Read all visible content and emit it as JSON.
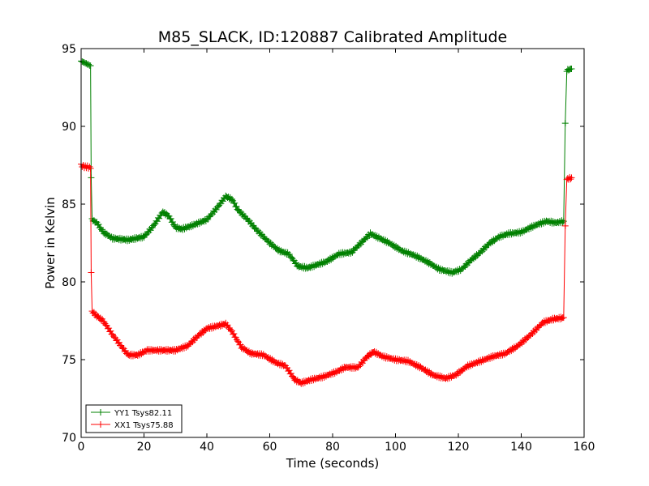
{
  "chart_data": {
    "type": "line",
    "title": "M85_SLACK, ID:120887 Calibrated Amplitude",
    "xlabel": "Time (seconds)",
    "ylabel": "Power in Kelvin",
    "xlim": [
      0,
      160
    ],
    "ylim": [
      70,
      95
    ],
    "x_ticks": [
      0,
      20,
      40,
      60,
      80,
      100,
      120,
      140,
      160
    ],
    "y_ticks": [
      70,
      75,
      80,
      85,
      90,
      95
    ],
    "grid": false,
    "legend_position": "lower-left",
    "marker": "+",
    "series": [
      {
        "name": "YY1 Tsys82.11",
        "color": "#008000",
        "points": [
          [
            0,
            94.2
          ],
          [
            1,
            94.1
          ],
          [
            2,
            94.0
          ],
          [
            3,
            93.9
          ],
          [
            3.2,
            86.7
          ],
          [
            3.5,
            84.0
          ],
          [
            5,
            83.8
          ],
          [
            7,
            83.2
          ],
          [
            10,
            82.8
          ],
          [
            15,
            82.7
          ],
          [
            20,
            82.9
          ],
          [
            23,
            83.6
          ],
          [
            26,
            84.5
          ],
          [
            28,
            84.2
          ],
          [
            30,
            83.5
          ],
          [
            32,
            83.4
          ],
          [
            35,
            83.6
          ],
          [
            40,
            84.0
          ],
          [
            43,
            84.7
          ],
          [
            46,
            85.5
          ],
          [
            48,
            85.3
          ],
          [
            50,
            84.6
          ],
          [
            53,
            84.0
          ],
          [
            56,
            83.3
          ],
          [
            60,
            82.5
          ],
          [
            63,
            82.0
          ],
          [
            66,
            81.8
          ],
          [
            69,
            81.0
          ],
          [
            72,
            80.9
          ],
          [
            75,
            81.1
          ],
          [
            78,
            81.3
          ],
          [
            82,
            81.8
          ],
          [
            86,
            81.9
          ],
          [
            89,
            82.5
          ],
          [
            92,
            83.1
          ],
          [
            95,
            82.8
          ],
          [
            98,
            82.5
          ],
          [
            102,
            82.0
          ],
          [
            106,
            81.7
          ],
          [
            110,
            81.3
          ],
          [
            114,
            80.8
          ],
          [
            118,
            80.6
          ],
          [
            121,
            80.8
          ],
          [
            124,
            81.4
          ],
          [
            127,
            81.9
          ],
          [
            130,
            82.5
          ],
          [
            133,
            82.9
          ],
          [
            136,
            83.1
          ],
          [
            140,
            83.2
          ],
          [
            144,
            83.6
          ],
          [
            148,
            83.9
          ],
          [
            151,
            83.8
          ],
          [
            153.5,
            83.9
          ],
          [
            154,
            90.2
          ],
          [
            154.5,
            93.6
          ],
          [
            156,
            93.7
          ]
        ]
      },
      {
        "name": "XX1 Tsys75.88",
        "color": "#ff0000",
        "points": [
          [
            0,
            87.5
          ],
          [
            1,
            87.4
          ],
          [
            2,
            87.4
          ],
          [
            3,
            87.3
          ],
          [
            3.2,
            80.6
          ],
          [
            3.5,
            78.1
          ],
          [
            5,
            77.8
          ],
          [
            7,
            77.5
          ],
          [
            10,
            76.6
          ],
          [
            13,
            75.8
          ],
          [
            15,
            75.3
          ],
          [
            18,
            75.3
          ],
          [
            21,
            75.6
          ],
          [
            25,
            75.6
          ],
          [
            30,
            75.6
          ],
          [
            34,
            75.9
          ],
          [
            37,
            76.5
          ],
          [
            40,
            77.0
          ],
          [
            44,
            77.2
          ],
          [
            46,
            77.3
          ],
          [
            48,
            76.8
          ],
          [
            51,
            75.8
          ],
          [
            54,
            75.4
          ],
          [
            58,
            75.3
          ],
          [
            62,
            74.8
          ],
          [
            65,
            74.6
          ],
          [
            68,
            73.7
          ],
          [
            70,
            73.5
          ],
          [
            73,
            73.7
          ],
          [
            77,
            73.9
          ],
          [
            81,
            74.2
          ],
          [
            84,
            74.5
          ],
          [
            88,
            74.5
          ],
          [
            91,
            75.2
          ],
          [
            93,
            75.5
          ],
          [
            96,
            75.2
          ],
          [
            100,
            75.0
          ],
          [
            104,
            74.9
          ],
          [
            108,
            74.5
          ],
          [
            112,
            74.0
          ],
          [
            116,
            73.8
          ],
          [
            119,
            74.0
          ],
          [
            123,
            74.6
          ],
          [
            127,
            74.9
          ],
          [
            131,
            75.2
          ],
          [
            135,
            75.4
          ],
          [
            139,
            75.9
          ],
          [
            143,
            76.6
          ],
          [
            147,
            77.4
          ],
          [
            150,
            77.6
          ],
          [
            153.5,
            77.7
          ],
          [
            154,
            83.6
          ],
          [
            154.5,
            86.6
          ],
          [
            156,
            86.7
          ]
        ]
      }
    ]
  }
}
